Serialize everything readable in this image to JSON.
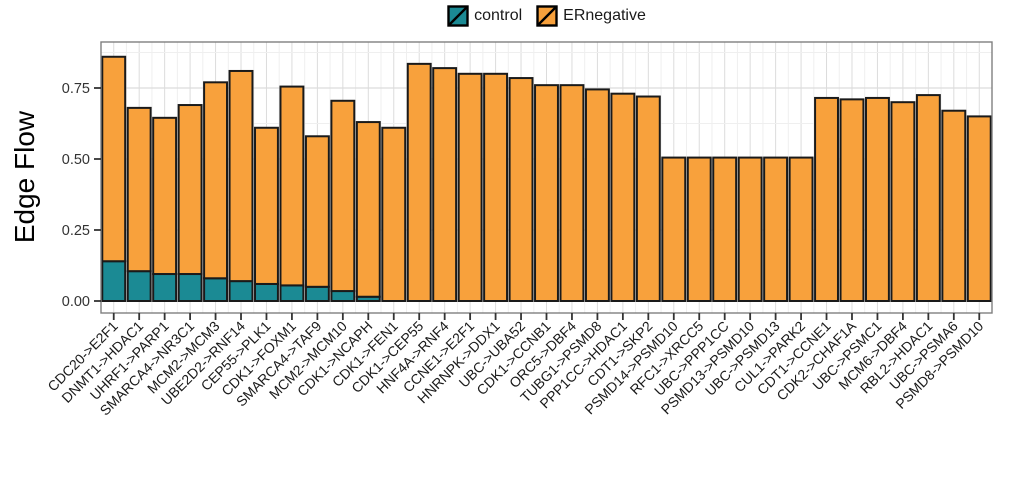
{
  "chart_data": {
    "type": "bar",
    "stacked": true,
    "title": "",
    "xlabel": "",
    "ylabel": "Edge Flow",
    "ylim": [
      0,
      0.91
    ],
    "yticks": [
      0,
      0.25,
      0.5,
      0.75
    ],
    "ytick_labels": [
      "0.00",
      "0.25",
      "0.50",
      "0.75"
    ],
    "yticks_minor": [
      0.125,
      0.375,
      0.625,
      0.875
    ],
    "grid": true,
    "legend_position": "top",
    "categories": [
      "CDC20->E2F1",
      "DNMT1->HDAC1",
      "UHRF1->PARP1",
      "SMARCA4->NR3C1",
      "MCM2->MCM3",
      "UBE2D2->RNF14",
      "CEP55->PLK1",
      "CDK1->FOXM1",
      "SMARCA4->TAF9",
      "MCM2->MCM10",
      "CDK1->NCAPH",
      "CDK1->FEN1",
      "CDK1->CEP55",
      "HNF4A->RNF4",
      "CCNE1->E2F1",
      "HNRNPK->DDX1",
      "UBC->UBA52",
      "CDK1->CCNB1",
      "ORC5->DBF4",
      "TUBG1->PSMD8",
      "PPP1CC->HDAC1",
      "CDT1->SKP2",
      "PSMD14->PSMD10",
      "RFC1->XRCC5",
      "UBC->PPP1CC",
      "PSMD13->PSMD10",
      "UBC->PSMD13",
      "CUL1->PARK2",
      "CDT1->CCNE1",
      "CDK2->CHAF1A",
      "UBC->PSMC1",
      "MCM6->DBF4",
      "RBL2->HDAC1",
      "UBC->PSMA6",
      "PSMD8->PSMD10"
    ],
    "series": [
      {
        "name": "control",
        "color": "#1b8a94",
        "values": [
          0.14,
          0.105,
          0.095,
          0.095,
          0.08,
          0.07,
          0.06,
          0.055,
          0.05,
          0.035,
          0.015,
          0,
          0,
          0,
          0,
          0,
          0,
          0,
          0,
          0,
          0,
          0,
          0,
          0,
          0,
          0,
          0,
          0,
          0,
          0,
          0,
          0,
          0,
          0,
          0
        ]
      },
      {
        "name": "ERnegative",
        "color": "#f8a13c",
        "values": [
          0.72,
          0.575,
          0.55,
          0.595,
          0.69,
          0.74,
          0.55,
          0.7,
          0.53,
          0.67,
          0.615,
          0.61,
          0.835,
          0.82,
          0.8,
          0.8,
          0.785,
          0.76,
          0.76,
          0.745,
          0.73,
          0.72,
          0.505,
          0.505,
          0.505,
          0.505,
          0.505,
          0.505,
          0.715,
          0.71,
          0.715,
          0.7,
          0.725,
          0.67,
          0.65
        ]
      }
    ]
  },
  "style": {
    "bar_outline": "#1a1a1a",
    "panel_border": "#7f7f7f",
    "panel_background": "#ffffff",
    "grid_major": "#dcdcdc",
    "grid_minor": "#efefef",
    "axis_text": "#333333",
    "label_text": "#1a1a1a",
    "tick_color": "#333333"
  }
}
